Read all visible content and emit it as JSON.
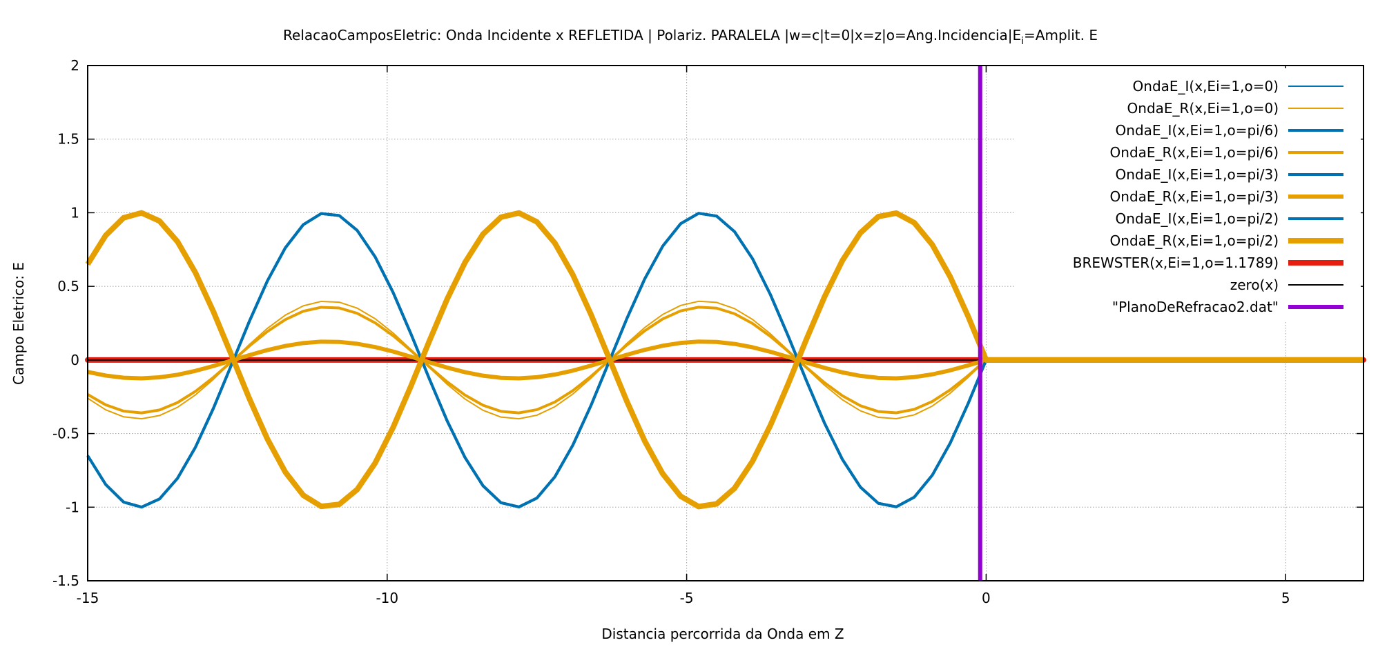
{
  "chart_data": {
    "type": "line",
    "title": "RelacaoCamposEletric: Onda Incidente x REFLETIDA | Polariz. PARALELA |w=c|t=0|x=z|o=Ang.Incidencia|E",
    "title_sub": "i",
    "title_tail": "=Amplit. E",
    "xlabel": "Distancia percorrida da Onda em Z",
    "ylabel": "Campo Eletrico: E",
    "xlim": [
      -15,
      6.3
    ],
    "ylim": [
      -1.5,
      2
    ],
    "x_ticks": [
      -15,
      -10,
      -5,
      0,
      5
    ],
    "x_tick_labels": [
      "-15",
      "-10",
      "-5",
      "0",
      "5"
    ],
    "y_ticks": [
      -1.5,
      -1,
      -0.5,
      0,
      0.5,
      1,
      1.5,
      2
    ],
    "y_tick_labels": [
      "-1.5",
      "-1",
      "-0.5",
      "0",
      "0.5",
      "1",
      "1.5",
      "2"
    ],
    "grid": true,
    "legend_position": "top-right",
    "boundary_x": 0,
    "sample_step": 0.3,
    "series": [
      {
        "name": "OndaE_I(x,Ei=1,o=0)",
        "kind": "incident",
        "amplitude": 1,
        "color": "#0072b2",
        "width": 2
      },
      {
        "name": "OndaE_R(x,Ei=1,o=0)",
        "kind": "reflected",
        "amplitude": 0.4,
        "color": "#e69f00",
        "width": 2
      },
      {
        "name": "OndaE_I(x,Ei=1,o=pi/6)",
        "kind": "incident",
        "amplitude": 1,
        "color": "#0072b2",
        "width": 4
      },
      {
        "name": "OndaE_R(x,Ei=1,o=pi/6)",
        "kind": "reflected",
        "amplitude": 0.36,
        "color": "#e69f00",
        "width": 4
      },
      {
        "name": "OndaE_I(x,Ei=1,o=pi/3)",
        "kind": "incident",
        "amplitude": 1,
        "color": "#0072b2",
        "width": 4
      },
      {
        "name": "OndaE_R(x,Ei=1,o=pi/3)",
        "kind": "reflected",
        "amplitude": 0.125,
        "color": "#e69f00",
        "width": 6
      },
      {
        "name": "OndaE_I(x,Ei=1,o=pi/2)",
        "kind": "incident",
        "amplitude": 1,
        "color": "#0072b2",
        "width": 4
      },
      {
        "name": "OndaE_R(x,Ei=1,o=pi/2)",
        "kind": "reflected",
        "amplitude": -1,
        "color": "#e69f00",
        "width": 8
      },
      {
        "name": "BREWSTER(x,Ei=1,o=1.1789)",
        "kind": "constant",
        "value": 0,
        "color": "#e51e10",
        "width": 8
      },
      {
        "name": "zero(x)",
        "kind": "constant",
        "value": 0,
        "color": "#000000",
        "width": 2
      },
      {
        "name": "\"PlanoDeRefracao2.dat\"",
        "kind": "vertical",
        "x": -0.1,
        "color": "#9400d3",
        "width": 6
      }
    ]
  }
}
